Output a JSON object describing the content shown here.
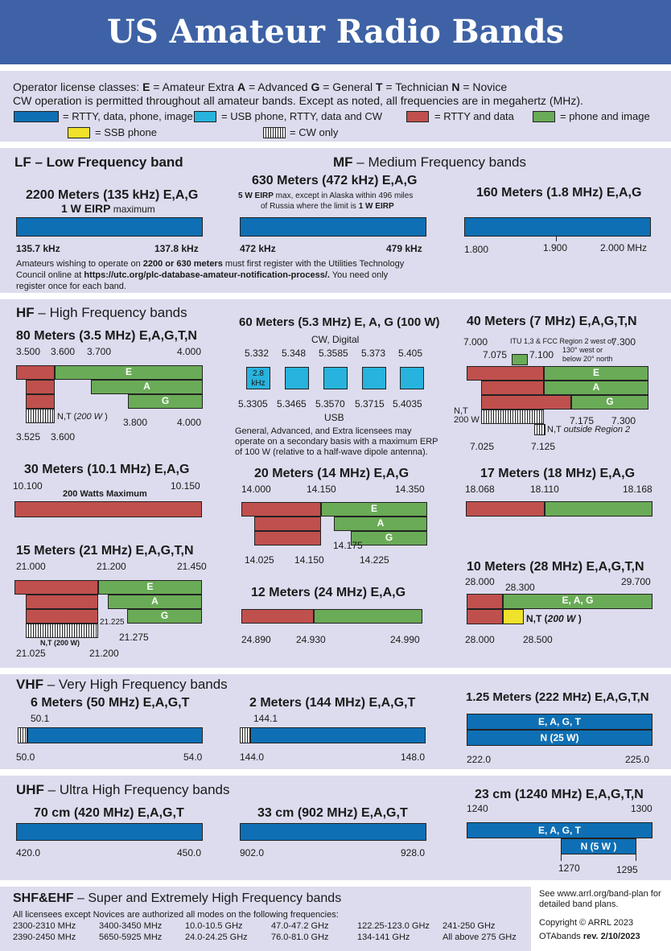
{
  "title": "US Amateur Radio Bands",
  "legend": {
    "line1_prefix": "Operator license classes: ",
    "classes": [
      [
        "E",
        " = Amateur Extra  "
      ],
      [
        "A",
        " = Advanced  "
      ],
      [
        "G",
        " = General  "
      ],
      [
        "T",
        " = Technician  "
      ],
      [
        "N",
        " = Novice"
      ]
    ],
    "line2": "CW operation is permitted throughout all amateur bands. Except as noted, all frequencies are in megahertz (MHz).",
    "items": [
      "= RTTY, data, phone, image",
      "= USB phone, RTTY, data and CW",
      "= RTTY and data",
      "= phone and image",
      "= SSB phone",
      "= CW only"
    ]
  },
  "lf": {
    "heading": "LF – Low Frequency band",
    "band": "2200 Meters (135 kHz)  E,A,G",
    "sub_b": "1 W EIRP",
    "sub": " maximum",
    "lo": "135.7 kHz",
    "hi": "137.8 kHz"
  },
  "mf": {
    "heading_b": "MF",
    "heading": " – Medium Frequency bands",
    "b630": "630 Meters (472 kHz)  E,A,G",
    "b630_n1b": "5 W EIRP",
    "b630_n1": " max, except in Alaska within 496 miles",
    "b630_n2": "of Russia where the limit is ",
    "b630_n2b": "1 W EIRP",
    "lo630": "472 kHz",
    "hi630": "479 kHz",
    "b160": "160 Meters (1.8 MHz)  E,A,G",
    "f160": [
      "1.800",
      "1.900",
      "2.000 MHz"
    ]
  },
  "reg_note": {
    "a": "Amateurs wishing to operate on ",
    "b": "2200 or 630 meters",
    "c": " must first register with the Utilities Technology",
    "d": "Council online at ",
    "e": "https://utc.org/plc-database-amateur-notification-process/.",
    "f": " You need only",
    "g": "register once for each band."
  },
  "hf": {
    "heading_b": "HF",
    "heading": " – High Frequency bands",
    "b80": "80 Meters (3.5 MHz)  E,A,G,T,N",
    "f80": [
      "3.500",
      "3.600",
      "3.700",
      "4.000",
      "3.800",
      "4.000",
      "3.525",
      "3.600"
    ],
    "nt80": "N,T (",
    "nt80w": "200 W",
    "b60": "60 Meters (5.3 MHz) E, A, G (100 W)",
    "cwdig": "CW, Digital",
    "f60top": [
      "5.332",
      "5.348",
      "5.3585",
      "5.373",
      "5.405"
    ],
    "f60bot": [
      "5.3305",
      "5.3465",
      "5.3570",
      "5.3715",
      "5.4035"
    ],
    "usb": "USB",
    "khz": "2.8 kHz",
    "note60": [
      "General, Advanced, and Extra licensees may",
      "operate on a secondary basis with a maximum ERP",
      "of 100 W (relative to a half-wave dipole antenna)."
    ],
    "b40": "40 Meters (7 MHz)  E,A,G,T,N",
    "f40": [
      "7.000",
      "7.300",
      "7.075",
      "7.100",
      "7.175",
      "7.300",
      "7.025",
      "7.125"
    ],
    "itu": [
      "ITU 1,3 & FCC Region 2 west of",
      "130° west or",
      "below 20° north"
    ],
    "nt40": "N,T",
    "w40": "200 W",
    "ntout": "N,T outside Region 2",
    "b30": "30 Meters (10.1 MHz)  E,A,G",
    "f30": [
      "10.100",
      "10.150"
    ],
    "max30": "200 Watts Maximum",
    "b20": "20 Meters (14 MHz)  E,A,G",
    "f20": [
      "14.000",
      "14.150",
      "14.350",
      "14.025",
      "14.150",
      "14.175",
      "14.225"
    ],
    "b17": "17 Meters (18 MHz)  E,A,G",
    "f17": [
      "18.068",
      "18.110",
      "18.168"
    ],
    "b15": "15 Meters (21 MHz)  E,A,G,T,N",
    "f15": [
      "21.000",
      "21.200",
      "21.450",
      "21.225",
      "21.275",
      "21.025",
      "21.200"
    ],
    "nt15": "N,T (200 W)",
    "b12": "12 Meters (24 MHz)  E,A,G",
    "f12": [
      "24.890",
      "24.930",
      "24.990"
    ],
    "b10": "10 Meters (28 MHz)  E,A,G,T,N",
    "f10": [
      "28.000",
      "28.300",
      "29.700",
      "28.000",
      "28.500"
    ],
    "eag10": "E, A, G",
    "nt10": "N,T (",
    "w10": "200 W"
  },
  "classes": {
    "e": "E",
    "a": "A",
    "g": "G"
  },
  "vhf": {
    "heading_b": "VHF",
    "heading": " – Very High Frequency bands",
    "b6": "6 Meters (50 MHz) E,A,G,T",
    "f6": [
      "50.1",
      "50.0",
      "54.0"
    ],
    "b2": "2 Meters (144 MHz)  E,A,G,T",
    "f2": [
      "144.1",
      "144.0",
      "148.0"
    ],
    "b125": "1.25 Meters (222 MHz) E,A,G,T,N",
    "eagt": "E, A, G, T",
    "n25": "N (25 W)",
    "f125": [
      "222.0",
      "225.0"
    ]
  },
  "uhf": {
    "heading_b": "UHF",
    "heading": " – Ultra High Frequency bands",
    "b70": "70 cm (420 MHz)  E,A,G,T",
    "f70": [
      "420.0",
      "450.0"
    ],
    "b33": "33 cm (902 MHz) E,A,G,T",
    "f33": [
      "902.0",
      "928.0"
    ],
    "b23": "23 cm (1240 MHz) E,A,G,T,N",
    "f23": [
      "1240",
      "1300",
      "1270",
      "1295"
    ],
    "eagt": "E, A, G, T",
    "n5": "N (5 W )"
  },
  "shf": {
    "heading_b": "SHF&EHF",
    "heading": " – Super and Extremely High Frequency bands",
    "note": "All licensees except Novices are authorized all modes on the following frequencies:",
    "freqs": [
      [
        "2300-2310 MHz",
        "2390-2450 MHz"
      ],
      [
        "3400-3450 MHz",
        "5650-5925 MHz"
      ],
      [
        "10.0-10.5 GHz",
        "24.0-24.25 GHz"
      ],
      [
        "47.0-47.2 GHz",
        "76.0-81.0 GHz"
      ],
      [
        "122.25-123.0 GHz",
        "134-141 GHz"
      ],
      [
        "241-250 GHz",
        "All above 275 GHz"
      ]
    ]
  },
  "footer": {
    "see1": "See www.arrl.org/band-plan for",
    "see2": "detailed band plans.",
    "copy": "Copyright © ARRL 2023",
    "ota": "OTAbands ",
    "rev": "rev. 2/10/2023"
  }
}
